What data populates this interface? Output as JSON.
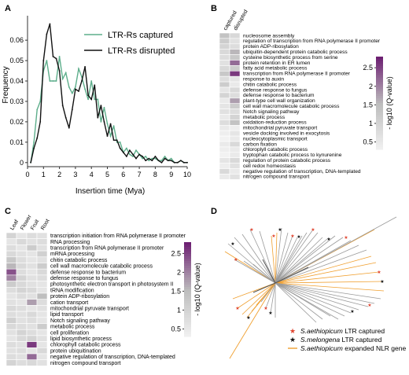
{
  "panels": {
    "A": {
      "label": "A",
      "chart_data": {
        "type": "line",
        "xlabel": "Insertion time (Mya)",
        "ylabel": "Frequency",
        "xlim": [
          0,
          10
        ],
        "ylim": [
          -0.002,
          0.072
        ],
        "xticks": [
          "0",
          "1",
          "2",
          "3",
          "4",
          "5",
          "6",
          "7",
          "8",
          "9",
          "10"
        ],
        "yticks": [
          "0",
          "0.01",
          "0.02",
          "0.03",
          "0.04",
          "0.05",
          "0.06"
        ],
        "legend_position": "top-right",
        "series": [
          {
            "name": "LTR-Rs captured",
            "color": "#5dae8b",
            "x": [
              0.2,
              0.4,
              0.6,
              0.8,
              1.0,
              1.2,
              1.4,
              1.6,
              1.8,
              2.0,
              2.2,
              2.4,
              2.6,
              2.8,
              3.0,
              3.2,
              3.4,
              3.6,
              3.8,
              4.0,
              4.2,
              4.4,
              4.6,
              4.8,
              5.0,
              5.2,
              5.4,
              5.6,
              5.8,
              6.0,
              6.2,
              6.4,
              6.6,
              6.8,
              7.0,
              7.2,
              7.4,
              7.6,
              7.8,
              8.0,
              8.2,
              8.4,
              8.6,
              8.8,
              9.0,
              9.2,
              9.4,
              9.6,
              9.8,
              10.0
            ],
            "y": [
              0.0,
              0.01,
              0.026,
              0.03,
              0.045,
              0.05,
              0.04,
              0.04,
              0.04,
              0.052,
              0.041,
              0.044,
              0.037,
              0.034,
              0.037,
              0.046,
              0.042,
              0.036,
              0.031,
              0.04,
              0.031,
              0.031,
              0.02,
              0.027,
              0.019,
              0.013,
              0.018,
              0.01,
              0.01,
              0.005,
              0.007,
              0.004,
              0.003,
              0.006,
              0.004,
              0.002,
              0.003,
              0.001,
              0.002,
              0.002,
              0.001,
              0.001,
              0.003,
              0.001,
              0.002,
              0.0,
              0.0,
              0.001,
              0.0,
              0.0
            ]
          },
          {
            "name": "LTR-Rs disrupted",
            "color": "#111111",
            "x": [
              0.2,
              0.4,
              0.6,
              0.8,
              1.0,
              1.2,
              1.4,
              1.6,
              1.8,
              2.0,
              2.2,
              2.4,
              2.6,
              2.8,
              3.0,
              3.2,
              3.4,
              3.6,
              3.8,
              4.0,
              4.2,
              4.4,
              4.6,
              4.8,
              5.0,
              5.2,
              5.4,
              5.6,
              5.8,
              6.0,
              6.2,
              6.4,
              6.6,
              6.8,
              7.0,
              7.2,
              7.4,
              7.6,
              7.8,
              8.0,
              8.2,
              8.4,
              8.6,
              8.8,
              9.0,
              9.2,
              9.4,
              9.6,
              9.8,
              10.0
            ],
            "y": [
              0.0,
              0.007,
              0.012,
              0.02,
              0.05,
              0.063,
              0.068,
              0.052,
              0.051,
              0.045,
              0.028,
              0.022,
              0.017,
              0.026,
              0.036,
              0.035,
              0.04,
              0.047,
              0.033,
              0.031,
              0.038,
              0.022,
              0.028,
              0.02,
              0.013,
              0.019,
              0.011,
              0.011,
              0.007,
              0.005,
              0.003,
              0.006,
              0.004,
              0.002,
              0.004,
              0.003,
              0.001,
              0.002,
              0.001,
              0.003,
              0.001,
              0.0,
              0.002,
              0.001,
              0.001,
              0.0,
              0.0,
              0.001,
              0.0,
              0.0
            ]
          }
        ]
      }
    },
    "B": {
      "label": "B",
      "chart_data": {
        "type": "heatmap",
        "columns": [
          "captured",
          "disrupted"
        ],
        "rows": [
          "nucleosome assembly",
          "regulation of transcription from RNA polymerase II promoter",
          "protein ADP-ribosylation",
          "ubiquitin-dependent protein catabolic process",
          "cysteine biosynthetic process from serine",
          "protein retention in ER lumen",
          "fatty acid metabolic process",
          "transcription from RNA polymerase II promoter",
          "response to auxin",
          "chitin catabolic process",
          "defense response to fungus",
          "defense response to bacterium",
          "plant-type cell wall organization",
          "cell wall macromolecule catabolic process",
          "Notch signaling pathway",
          "metabolic process",
          "oxidation-reduction process",
          "mitochondrial pyruvate transport",
          "vesicle docking involved in exocytosis",
          "nucleocytoplasmic transport",
          "carbon fixation",
          "chloroplyll catabolic process",
          "tryptophan catabolic process to kynurenine",
          "regulation of protein catabolic process",
          "cell redox homeostasis",
          "negative regulation of transcription, DNA-templated",
          "nitrogen compound transport"
        ],
        "values": [
          [
            1.4,
            0.9
          ],
          [
            1.2,
            0.7
          ],
          [
            1.0,
            0.8
          ],
          [
            0.9,
            1.6
          ],
          [
            0.8,
            1.3
          ],
          [
            0.7,
            2.2
          ],
          [
            0.9,
            1.2
          ],
          [
            1.3,
            2.6
          ],
          [
            0.8,
            0.6
          ],
          [
            1.2,
            0.5
          ],
          [
            0.6,
            0.9
          ],
          [
            1.0,
            0.8
          ],
          [
            0.5,
            1.8
          ],
          [
            0.6,
            1.2
          ],
          [
            0.7,
            0.8
          ],
          [
            0.5,
            1.0
          ],
          [
            0.8,
            1.4
          ],
          [
            0.5,
            0.4
          ],
          [
            0.4,
            0.6
          ],
          [
            0.3,
            0.5
          ],
          [
            0.5,
            0.9
          ],
          [
            0.4,
            0.5
          ],
          [
            0.3,
            0.5
          ],
          [
            0.6,
            0.9
          ],
          [
            0.4,
            0.7
          ],
          [
            0.9,
            0.5
          ],
          [
            0.5,
            0.7
          ]
        ],
        "colorbar": {
          "label": "- log10 (Q-value)",
          "ticks": [
            "0.5",
            "1",
            "1.5",
            "2",
            "2.5"
          ],
          "range": [
            0.3,
            2.8
          ],
          "low_color": "#f2f2f2",
          "mid_color": "#bdbdbd",
          "high_color": "#6d2072"
        }
      }
    },
    "C": {
      "label": "C",
      "chart_data": {
        "type": "heatmap",
        "columns": [
          "Leaf",
          "Flower",
          "Fruit",
          "Root"
        ],
        "rows": [
          "transcription initiation from RNA polymerase II promoter",
          "RNA processing",
          "transcription from RNA polymerase II promoter",
          "mRNA processing",
          "chitin catabolic process",
          "cell wall macromolecule catabolic process",
          "defense response to bacterium",
          "defense response to fungus",
          "photosynthetic electron transport in photosystem II",
          "tRNA modification",
          "protein ADP-ribosylation",
          "cation transport",
          "mitochondrial pyruvate transport",
          "lipid transport",
          "Notch signaling pathway",
          "metabolic process",
          "cell proliferation",
          "lipid biosynthetic process",
          "chlorophyll catabolic process",
          "protein ubiquitination",
          "negative regulation of transcription, DNA-templated",
          "nitrogen compound transport"
        ],
        "values": [
          [
            1.0,
            0.6,
            0.8,
            0.7
          ],
          [
            0.6,
            0.9,
            0.7,
            0.8
          ],
          [
            0.8,
            0.6,
            1.2,
            0.7
          ],
          [
            0.9,
            0.7,
            0.6,
            1.1
          ],
          [
            1.3,
            0.8,
            0.6,
            0.7
          ],
          [
            1.6,
            0.9,
            0.7,
            1.2
          ],
          [
            2.4,
            0.8,
            0.6,
            0.9
          ],
          [
            2.0,
            1.0,
            0.7,
            0.8
          ],
          [
            1.2,
            0.9,
            0.7,
            0.6
          ],
          [
            0.8,
            1.0,
            0.9,
            0.6
          ],
          [
            0.6,
            0.8,
            0.7,
            1.5
          ],
          [
            0.7,
            0.6,
            1.8,
            0.8
          ],
          [
            0.9,
            0.8,
            0.6,
            0.7
          ],
          [
            0.8,
            0.7,
            0.9,
            0.6
          ],
          [
            1.1,
            0.7,
            0.8,
            0.6
          ],
          [
            0.9,
            0.8,
            0.7,
            1.2
          ],
          [
            0.7,
            1.0,
            0.8,
            0.6
          ],
          [
            0.6,
            0.9,
            1.0,
            0.7
          ],
          [
            0.8,
            0.7,
            2.6,
            0.6
          ],
          [
            0.7,
            0.8,
            0.6,
            0.9
          ],
          [
            0.8,
            0.7,
            2.2,
            0.6
          ],
          [
            1.0,
            0.8,
            0.9,
            0.7
          ]
        ],
        "colorbar": {
          "label": "- log10 (Q-value)",
          "ticks": [
            "0.5",
            "1",
            "1.5",
            "2",
            "2.5"
          ],
          "range": [
            0.3,
            2.8
          ],
          "low_color": "#f2f2f2",
          "mid_color": "#bdbdbd",
          "high_color": "#6d2072"
        }
      }
    },
    "D": {
      "label": "D",
      "chart_data": {
        "type": "other",
        "description_kind": "unrooted phylogenetic tree",
        "legend": [
          {
            "symbol": "★",
            "color": "#e0442f",
            "species": "S.aethiopicum",
            "text": "LTR captured"
          },
          {
            "symbol": "★",
            "color": "#111111",
            "species": "S.melongena",
            "text": "LTR captured"
          },
          {
            "symbol": "line",
            "color": "#f0a030",
            "species": "S.aethiopicum",
            "text": "expanded NLR gene"
          }
        ]
      }
    }
  }
}
